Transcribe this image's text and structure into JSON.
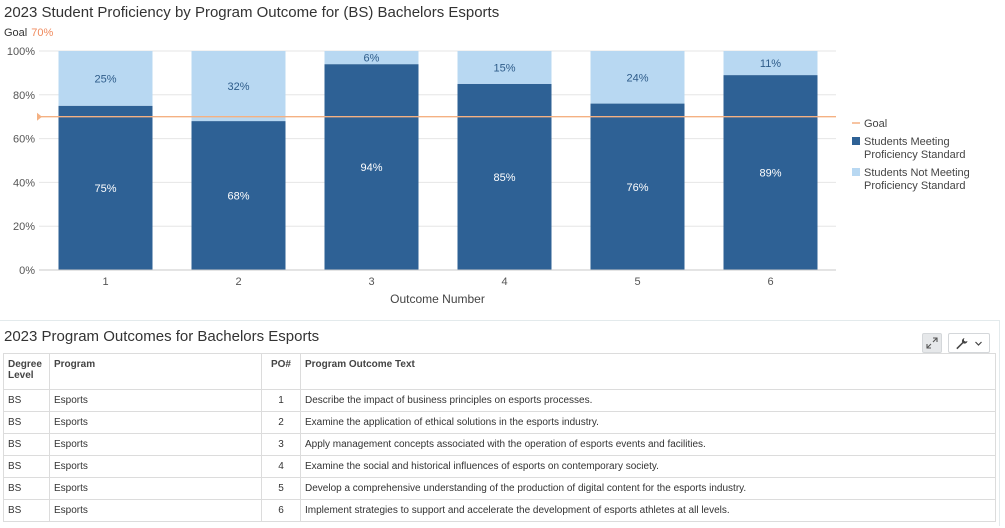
{
  "chart_data": {
    "type": "bar",
    "stacked": true,
    "title": "2023 Student Proficiency by Program Outcome for (BS) Bachelors Esports",
    "goal_label": "Goal",
    "goal_value": 70,
    "goal_value_label": "70%",
    "categories": [
      "1",
      "2",
      "3",
      "4",
      "5",
      "6"
    ],
    "xlabel": "Outcome Number",
    "ylabel": "",
    "ylim": [
      0,
      100
    ],
    "yticks": [
      0,
      20,
      40,
      60,
      80,
      100
    ],
    "ytick_labels": [
      "0%",
      "20%",
      "40%",
      "60%",
      "80%",
      "100%"
    ],
    "series": [
      {
        "name": "Students Meeting Proficiency Standard",
        "values": [
          75,
          68,
          94,
          85,
          76,
          89
        ],
        "color": "#2e6195",
        "label_color": "#ffffff"
      },
      {
        "name": "Students Not Meeting Proficiency Standard",
        "values": [
          25,
          32,
          6,
          15,
          24,
          11
        ],
        "color": "#b8d8f2",
        "label_color": "#2e5c8a"
      }
    ],
    "goal_line": {
      "name": "Goal",
      "value": 70,
      "color": "#f4b183"
    },
    "legend": {
      "placement": "right",
      "items": [
        {
          "lines": [
            "Goal"
          ],
          "marker": "line",
          "color": "#f4b183"
        },
        {
          "lines": [
            "Students Meeting",
            "Proficiency Standard"
          ],
          "marker": "square",
          "color": "#2e6195"
        },
        {
          "lines": [
            "Students Not Meeting",
            "Proficiency Standard"
          ],
          "marker": "square",
          "color": "#b8d8f2"
        }
      ]
    },
    "grid": true
  },
  "table": {
    "title": "2023 Program Outcomes for Bachelors Esports",
    "headers": {
      "degree_level": "Degree Level",
      "program": "Program",
      "po": "PO#",
      "text": "Program Outcome Text"
    },
    "rows": [
      {
        "degree_level": "BS",
        "program": "Esports",
        "po": "1",
        "text": "Describe the impact of business principles on esports processes."
      },
      {
        "degree_level": "BS",
        "program": "Esports",
        "po": "2",
        "text": "Examine the application of ethical solutions in the esports industry."
      },
      {
        "degree_level": "BS",
        "program": "Esports",
        "po": "3",
        "text": "Apply management concepts associated with the operation of esports events and facilities."
      },
      {
        "degree_level": "BS",
        "program": "Esports",
        "po": "4",
        "text": "Examine the social and historical influences of esports on contemporary society."
      },
      {
        "degree_level": "BS",
        "program": "Esports",
        "po": "5",
        "text": "Develop a comprehensive understanding of the production of digital content for the esports industry."
      },
      {
        "degree_level": "BS",
        "program": "Esports",
        "po": "6",
        "text": "Implement strategies to support and accelerate the development of esports athletes at all levels."
      }
    ]
  },
  "toolbar": {
    "expand_icon": "expand-arrows-icon",
    "tools_icon": "wrench-icon",
    "dropdown_icon": "chevron-down-icon"
  }
}
